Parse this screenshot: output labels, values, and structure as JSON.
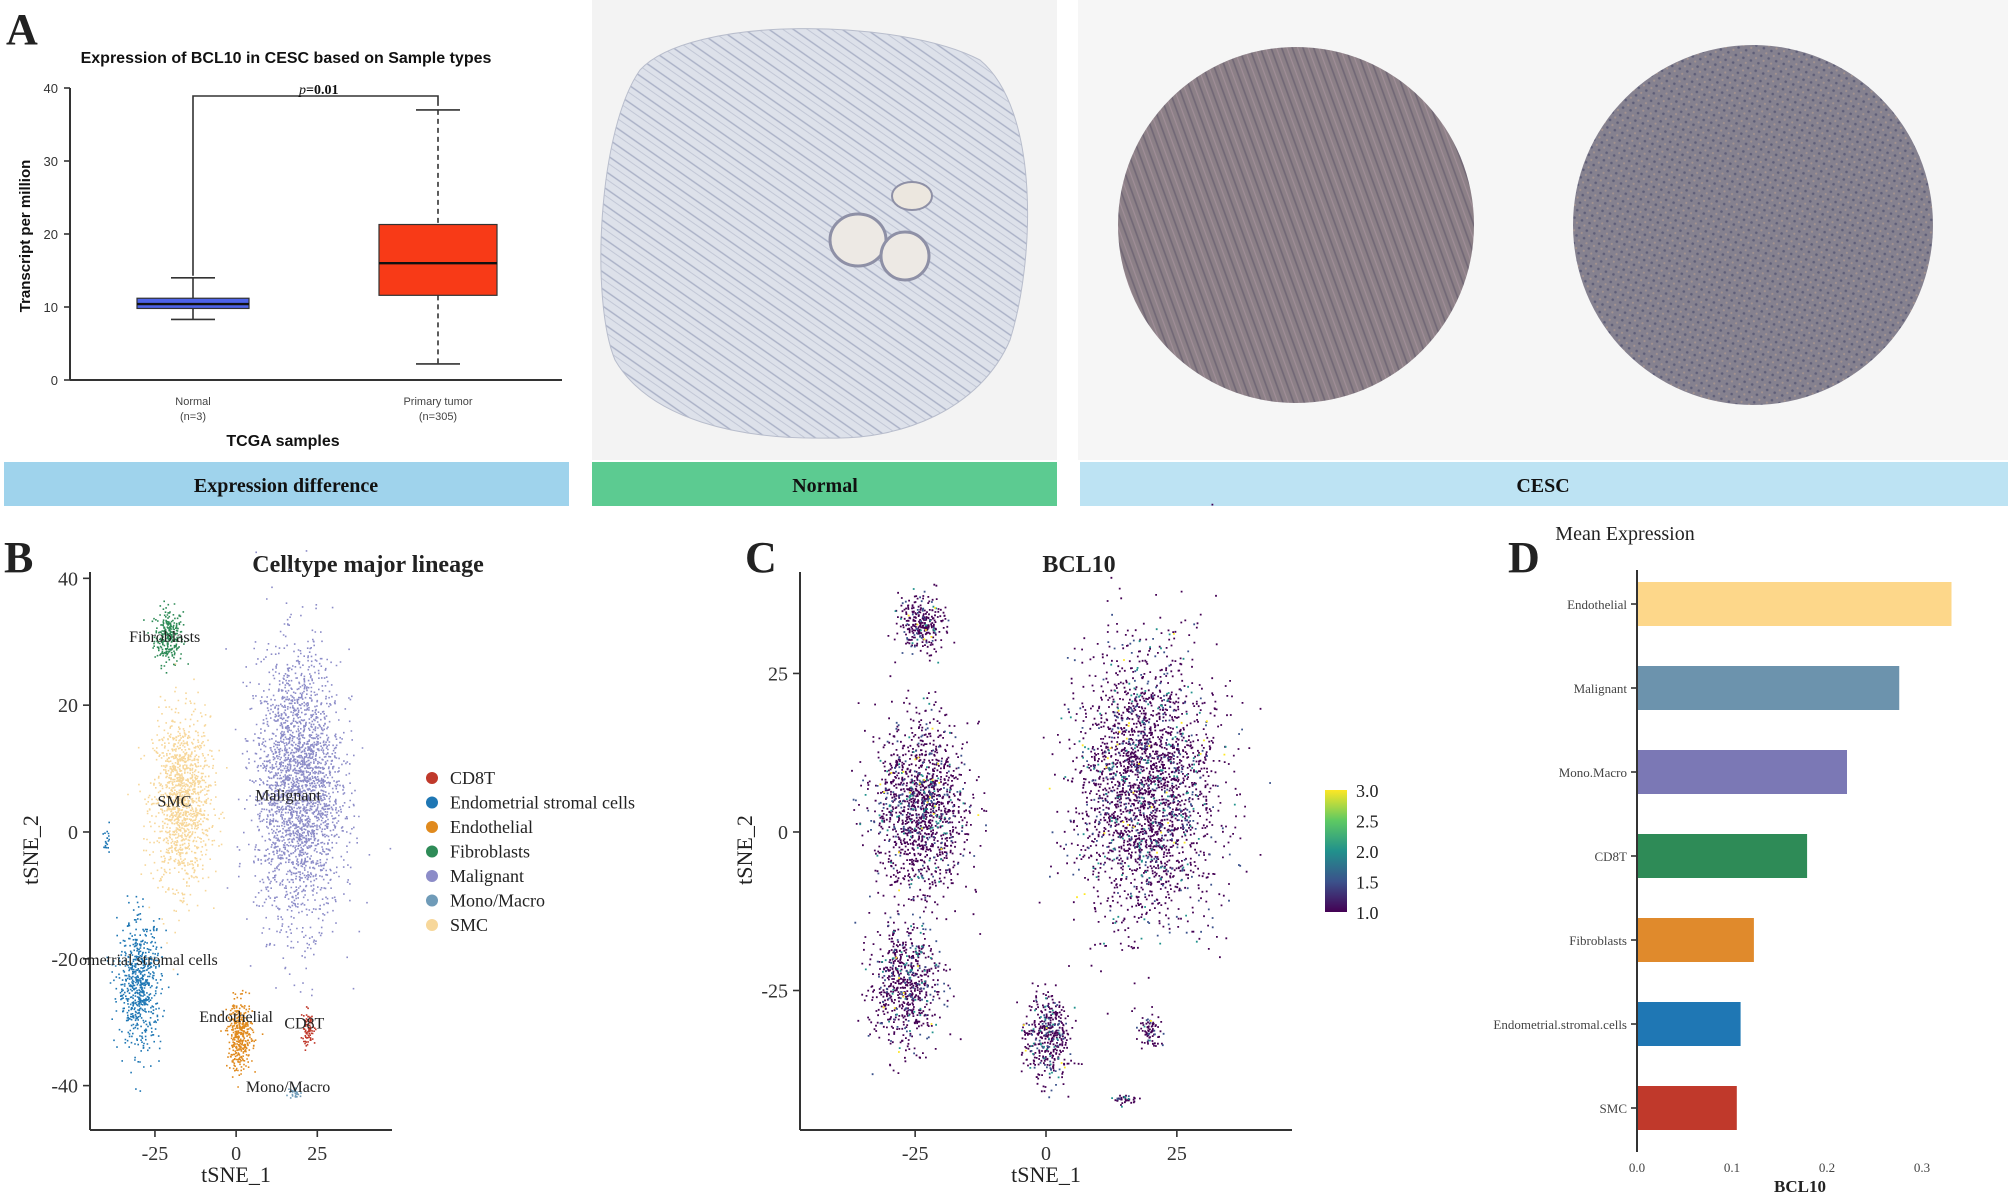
{
  "panel_labels": [
    "A",
    "B",
    "C",
    "D"
  ],
  "band_labels": {
    "expression": "Expression difference",
    "normal": "Normal",
    "cesc": "CESC"
  },
  "colors": {
    "band_blue": "#9fd3ec",
    "band_green": "#5ccb91",
    "band_cesc": "#bde3f3",
    "normal_box": "#4d63e8",
    "tumor_box": "#f83a17",
    "tissue_normal": "#c9cedd",
    "tissue_cesc": "#8a7d82"
  },
  "chart_data": [
    {
      "id": "A",
      "type": "box",
      "title": "Expression of BCL10 in CESC based on Sample types",
      "xlabel": "TCGA samples",
      "ylabel": "Transcript per million",
      "ylim": [
        0,
        40
      ],
      "yticks": [
        "0",
        "10",
        "20",
        "30",
        "40"
      ],
      "pvalue_prefix": "p",
      "pvalue_text": "=0.01",
      "groups": [
        {
          "name": "Normal",
          "n": "(n=3)",
          "min": 8.3,
          "q1": 9.8,
          "median": 10.4,
          "q3": 11.2,
          "max": 14.0,
          "color": "#4d63e8"
        },
        {
          "name": "Primary tumor",
          "n": "(n=305)",
          "min": 2.2,
          "q1": 11.6,
          "median": 16.0,
          "q3": 21.3,
          "max": 37.0,
          "color": "#f83a17"
        }
      ]
    },
    {
      "id": "B",
      "type": "scatter",
      "title": "Celltype major lineage",
      "xlabel": "tSNE_1",
      "ylabel": "tSNE_2",
      "xlim": [
        -45,
        48
      ],
      "ylim": [
        -47,
        41
      ],
      "xticks": [
        "-25",
        "0",
        "25"
      ],
      "yticks": [
        "40",
        "20",
        "0",
        "-20",
        "-40"
      ],
      "legend": [
        {
          "name": "CD8T",
          "color": "#c0392b"
        },
        {
          "name": "Endometrial stromal cells",
          "color": "#1f77b4"
        },
        {
          "name": "Endothelial",
          "color": "#e08a1e"
        },
        {
          "name": "Fibroblasts",
          "color": "#2e8b57"
        },
        {
          "name": "Malignant",
          "color": "#8c8cc8"
        },
        {
          "name": "Mono/Macro",
          "color": "#6f9bb8"
        },
        {
          "name": "SMC",
          "color": "#f7d79a"
        }
      ],
      "cluster_labels": [
        {
          "text": "Fibroblasts",
          "x": -22,
          "y": 30
        },
        {
          "text": "SMC",
          "x": -19,
          "y": 4
        },
        {
          "text": "Malignant",
          "x": 16,
          "y": 5
        },
        {
          "text": "ometrial stromal cells",
          "x": -27,
          "y": -21
        },
        {
          "text": "Endothelial",
          "x": 0,
          "y": -30
        },
        {
          "text": "CD8T",
          "x": 21,
          "y": -31
        },
        {
          "text": "Mono/Macro",
          "x": 16,
          "y": -41
        }
      ]
    },
    {
      "id": "C",
      "type": "scatter",
      "title": "BCL10",
      "xlabel": "tSNE_1",
      "ylabel": "tSNE_2",
      "xlim": [
        -47,
        47
      ],
      "ylim": [
        -47,
        41
      ],
      "xticks": [
        "-25",
        "0",
        "25"
      ],
      "yticks": [
        "25",
        "0",
        "-25"
      ],
      "colorbar": {
        "min": 1.0,
        "max": 3.0,
        "ticks": [
          "3.0",
          "2.5",
          "2.0",
          "1.5",
          "1.0"
        ]
      }
    },
    {
      "id": "D",
      "type": "bar",
      "orientation": "horizontal",
      "title": "Mean Expression",
      "xlabel": "BCL10",
      "xlim": [
        0,
        0.34
      ],
      "xticks": [
        "0.0",
        "0.1",
        "0.2",
        "0.3"
      ],
      "categories": [
        "Endothelial",
        "Malignant",
        "Mono.Macro",
        "CD8T",
        "Fibroblasts",
        "Endometrial.stromal.cells",
        "SMC"
      ],
      "values": [
        0.33,
        0.275,
        0.22,
        0.178,
        0.122,
        0.108,
        0.104
      ],
      "colors": [
        "#fdd78a",
        "#6c93ad",
        "#7b78b5",
        "#2e8b57",
        "#e08a2c",
        "#1f77b4",
        "#c0392b"
      ]
    }
  ]
}
